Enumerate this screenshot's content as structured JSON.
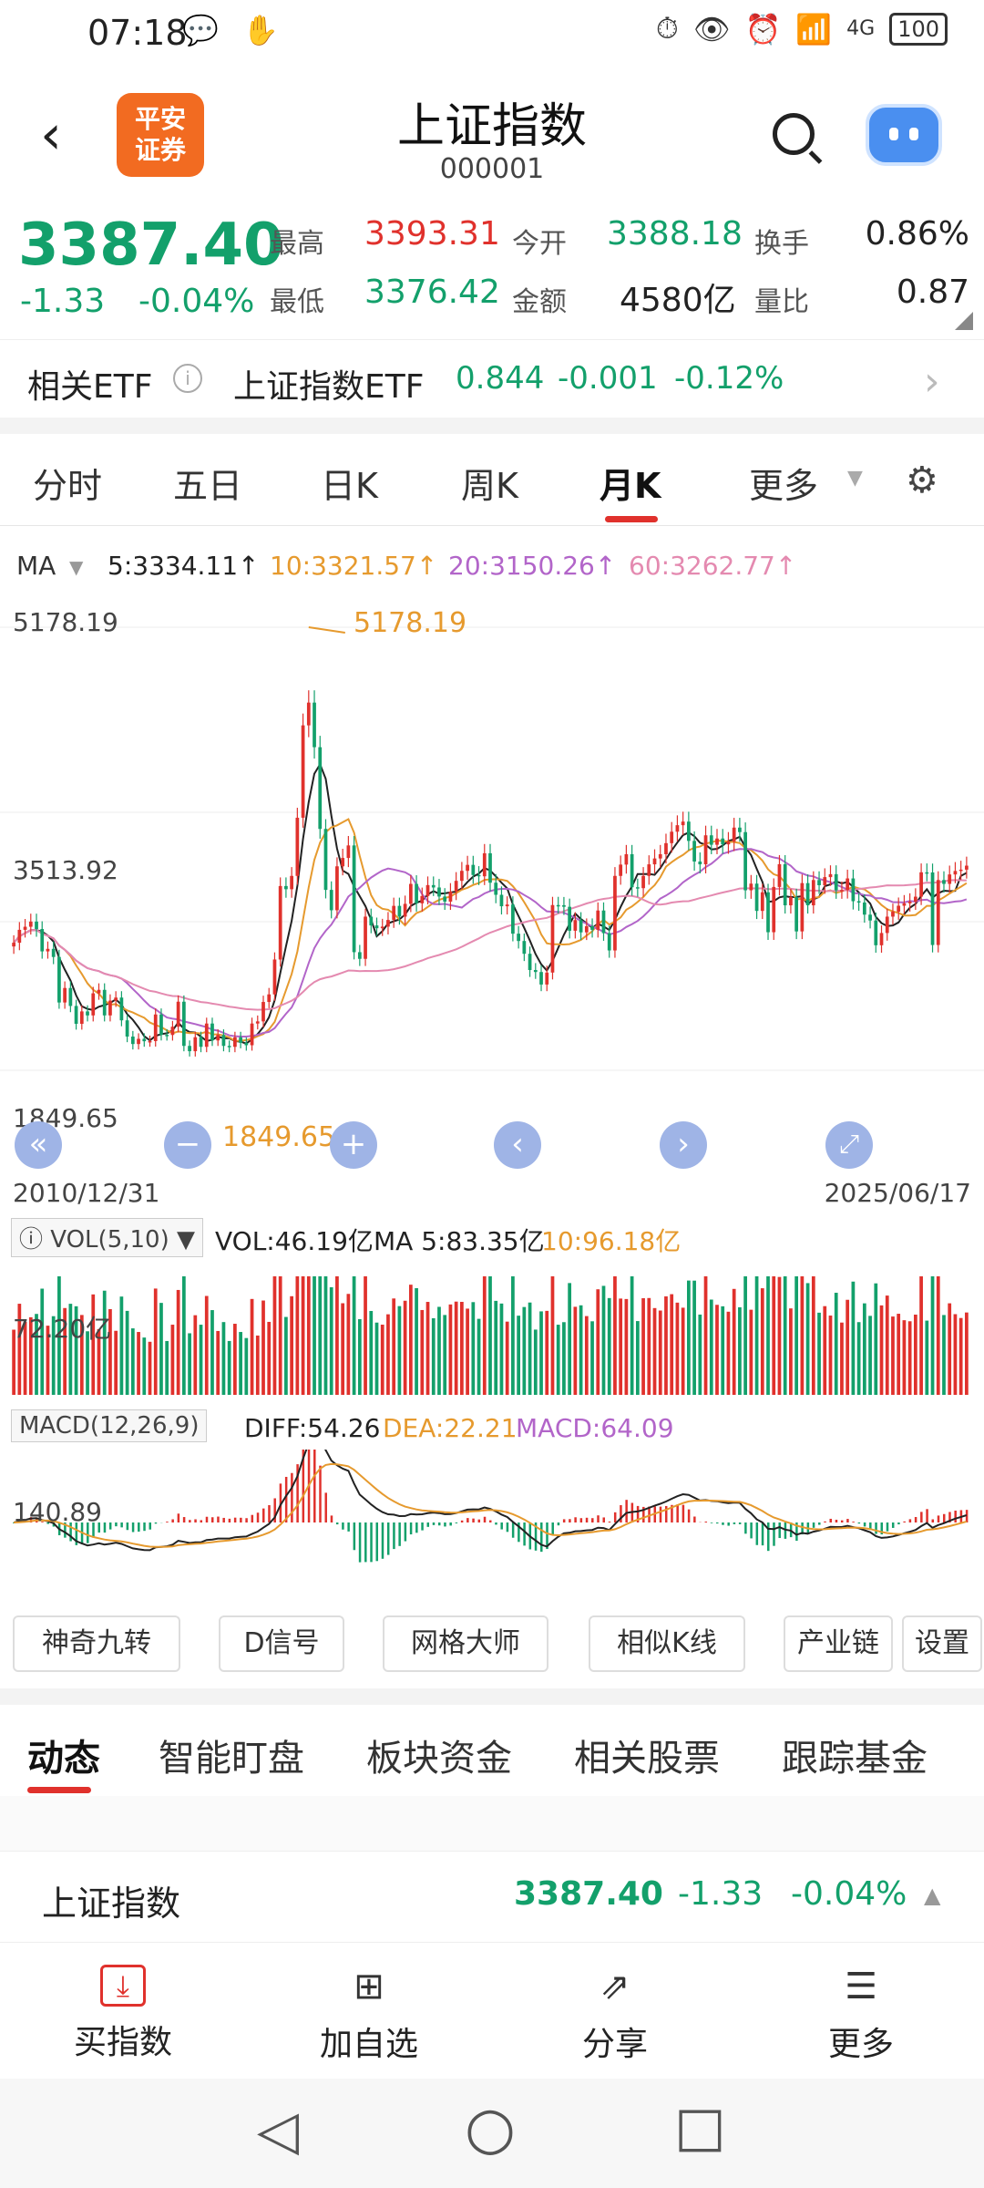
{
  "status_bar": {
    "time": "07:18",
    "left_icons": "💬 ✋",
    "right_icons": [
      "⏱",
      "👁",
      "⏰",
      "📶",
      "4G"
    ],
    "battery": "100"
  },
  "header": {
    "logo_text": "平安\n证券",
    "title": "上证指数",
    "code": "000001"
  },
  "quote": {
    "price": "3387.40",
    "change": "-1.33",
    "change_pct": "-0.04%",
    "stats": [
      {
        "label": "最高",
        "value": "3393.31",
        "color": "#e0312c"
      },
      {
        "label": "今开",
        "value": "3388.18",
        "color": "#13a06b"
      },
      {
        "label": "换手",
        "value": "0.86%",
        "color": "#222222"
      },
      {
        "label": "最低",
        "value": "3376.42",
        "color": "#13a06b"
      },
      {
        "label": "金额",
        "value": "4580亿",
        "color": "#222222"
      },
      {
        "label": "量比",
        "value": "0.87",
        "color": "#222222"
      }
    ]
  },
  "etf": {
    "label": "相关ETF",
    "info_icon": "i",
    "name": "上证指数ETF",
    "value": "0.844",
    "change": "-0.001",
    "change_pct": "-0.12%",
    "chevron": "›"
  },
  "tabs": {
    "items": [
      "分时",
      "五日",
      "日K",
      "周K",
      "月K",
      "更多"
    ],
    "active": "月K",
    "more_arrow": "▼",
    "gear": "⚙"
  },
  "ma": {
    "label": "MA",
    "arrow": "▼",
    "items": [
      {
        "text": "5:3334.11↑",
        "color": "#222222"
      },
      {
        "text": "10:3321.57↑",
        "color": "#e69a2e"
      },
      {
        "text": "20:3150.26↑",
        "color": "#b265c9"
      },
      {
        "text": "60:3262.77↑",
        "color": "#e48ab0"
      }
    ]
  },
  "chart": {
    "y_max_label": "5178.19",
    "y_mid_label": "3513.92",
    "y_min_label": "1849.65",
    "peak_label": "5178.19",
    "trough_label": "1849.65",
    "start_date": "2010/12/31",
    "end_date": "2025/06/17",
    "nav_buttons": [
      "«",
      "−",
      "+",
      "‹",
      "›",
      "⤢"
    ]
  },
  "chart_data": {
    "type": "candlestick",
    "title": "上证指数 月K",
    "x_start": "2010/12/31",
    "x_end": "2025/06/17",
    "ylim": [
      1849.65,
      5178.19
    ],
    "highest": 5178.19,
    "lowest": 1849.65,
    "series": [
      {
        "name": "MA5",
        "value": 3334.11
      },
      {
        "name": "MA10",
        "value": 3321.57
      },
      {
        "name": "MA20",
        "value": 3150.26
      },
      {
        "name": "MA60",
        "value": 3262.77
      }
    ],
    "close_approx": [
      2808,
      2905,
      2928,
      2967,
      2911,
      2743,
      2762,
      2701,
      2359,
      2468,
      2333,
      2199,
      2292,
      2262,
      2428,
      2454,
      2262,
      2373,
      2396,
      2225,
      2103,
      2047,
      2086,
      2068,
      2069,
      2269,
      2116,
      2115,
      2177,
      2365,
      2033,
      1993,
      2098,
      2026,
      2201,
      2074,
      2115,
      2033,
      2026,
      2097,
      2056,
      2038,
      2201,
      2217,
      2363,
      2420,
      2682,
      3234,
      3210,
      3310,
      3747,
      4441,
      4612,
      4277,
      3663,
      3205,
      3052,
      3382,
      3445,
      3539,
      2737,
      2687,
      3004,
      2938,
      2917,
      2929,
      2979,
      3085,
      3004,
      3100,
      3250,
      3104,
      3159,
      3241,
      3223,
      3155,
      3117,
      3192,
      3273,
      3348,
      3393,
      3317,
      3307,
      3480,
      3259,
      3168,
      3082,
      3095,
      2876,
      2821,
      2725,
      2603,
      2588,
      2494,
      2584,
      3091,
      3090,
      3078,
      2898,
      2978,
      2886,
      2932,
      2905,
      3050,
      2880,
      2750,
      3310,
      3395,
      3473,
      3225,
      3218,
      3310,
      3397,
      3441,
      3473,
      3556,
      3642,
      3691,
      3718,
      3573,
      3418,
      3397,
      3615,
      3544,
      3591,
      3547,
      3568,
      3673,
      3639,
      3202,
      3252,
      3047,
      3187,
      2887,
      3227,
      3398,
      3089,
      3151,
      2893,
      3256,
      3089,
      3279,
      3240,
      3301,
      3323,
      3202,
      3204,
      3291,
      3120,
      3110,
      3019,
      2975,
      2789,
      2881,
      3004,
      3041,
      3086,
      3104,
      3117,
      3154,
      3337,
      3336,
      2791,
      3279,
      3250,
      3321,
      3347,
      3357,
      3387
    ]
  },
  "volume": {
    "label": "VOL(5,10)",
    "info_icon": "i",
    "vol": "VOL:46.19亿",
    "ma5": "MA 5:83.35亿",
    "ma10": "10:96.18亿",
    "y_label": "72.20亿"
  },
  "macd": {
    "label": "MACD(12,26,9)",
    "diff": "DIFF:54.26",
    "dea": "DEA:22.21",
    "macd": "MACD:64.09",
    "y_label": "140.89"
  },
  "tools": [
    "神奇九转",
    "D信号",
    "网格大师",
    "相似K线",
    "产业链",
    "设置"
  ],
  "bottom_tabs": {
    "items": [
      "动态",
      "智能盯盘",
      "板块资金",
      "相关股票",
      "跟踪基金"
    ],
    "active": "动态"
  },
  "index_row": {
    "name": "上证指数",
    "price": "3387.40",
    "change": "-1.33",
    "change_pct": "-0.04%",
    "arrow": "▲"
  },
  "bottom_bar": [
    {
      "label": "买指数",
      "icon": "⤓",
      "color": "#e0312c"
    },
    {
      "label": "加自选",
      "icon": "⊞",
      "color": "#333333"
    },
    {
      "label": "分享",
      "icon": "⇗",
      "color": "#333333"
    },
    {
      "label": "更多",
      "icon": "☰",
      "color": "#333333"
    }
  ],
  "system_nav": [
    "◁",
    "○",
    "□"
  ]
}
